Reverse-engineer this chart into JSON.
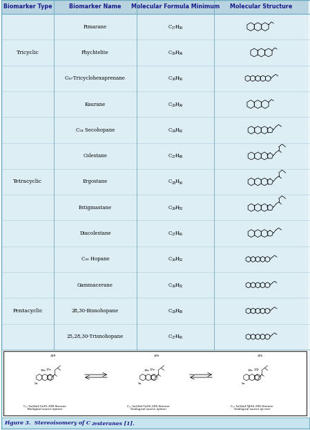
{
  "header": [
    "Biomarker Type",
    "Biomarker Name",
    "Molecular Formula Minimum",
    "Molecular Structure"
  ],
  "header_bg": "#b8d4e0",
  "header_text_color": "#1a1a8c",
  "table_bg": "#ddeef5",
  "border_color": "#6aaabf",
  "rows": [
    {
      "type": "",
      "name": "Pimarane",
      "formula_main": "C",
      "formula_sub": "17",
      "formula_h": "H",
      "formula_hsub": "30"
    },
    {
      "type": "Tricyclic",
      "name": "Phychtelite",
      "formula_main": "C",
      "formula_sub": "19",
      "formula_h": "H",
      "formula_hsub": "34"
    },
    {
      "type": "",
      "name": "C₀₀-Tricyclohexaprenane",
      "formula_main": "C",
      "formula_sub": "30",
      "formula_h": "H",
      "formula_hsub": "50"
    },
    {
      "type": "",
      "name": "Kaurane",
      "formula_main": "C",
      "formula_sub": "20",
      "formula_h": "H",
      "formula_hsub": "34"
    },
    {
      "type": "",
      "name": "C₂₄ Secohopane",
      "formula_main": "C",
      "formula_sub": "24",
      "formula_h": "H",
      "formula_hsub": "42"
    },
    {
      "type": "",
      "name": "Colestane",
      "formula_main": "C",
      "formula_sub": "27",
      "formula_h": "H",
      "formula_hsub": "48"
    },
    {
      "type": "Tetracyclic",
      "name": "Ergostane",
      "formula_main": "C",
      "formula_sub": "28",
      "formula_h": "H",
      "formula_hsub": "50"
    },
    {
      "type": "",
      "name": "Estigmastane",
      "formula_main": "C",
      "formula_sub": "29",
      "formula_h": "H",
      "formula_hsub": "52"
    },
    {
      "type": "",
      "name": "Diacolestane",
      "formula_main": "C",
      "formula_sub": "27",
      "formula_h": "H",
      "formula_hsub": "46"
    },
    {
      "type": "",
      "name": "C₃₀ Hopane",
      "formula_main": "C",
      "formula_sub": "30",
      "formula_h": "H",
      "formula_hsub": "52"
    },
    {
      "type": "",
      "name": "Gammacerane",
      "formula_main": "C",
      "formula_sub": "30",
      "formula_h": "H",
      "formula_hsub": "52"
    },
    {
      "type": "Pentacyclic",
      "name": "28,30-Bisnohopane",
      "formula_main": "C",
      "formula_sub": "28",
      "formula_h": "H",
      "formula_hsub": "48"
    },
    {
      "type": "",
      "name": "25,28,30-Trisnohopane",
      "formula_main": "C",
      "formula_sub": "27",
      "formula_h": "H",
      "formula_hsub": "46"
    }
  ],
  "type_groups": [
    {
      "name": "Tricyclic",
      "start": 1,
      "end": 3
    },
    {
      "name": "Tetracyclic",
      "start": 6,
      "end": 6
    },
    {
      "name": "Pentacyclic",
      "start": 11,
      "end": 11
    }
  ],
  "fig_width": 4.49,
  "fig_height": 6.21,
  "dpi": 100
}
